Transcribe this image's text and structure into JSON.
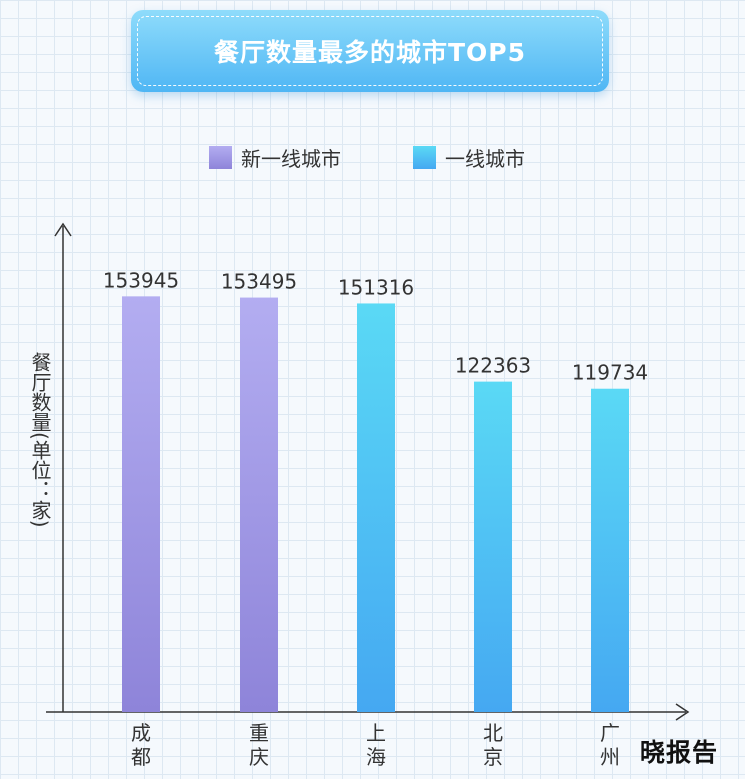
{
  "chart_data": {
    "type": "bar",
    "title": "餐厅数量最多的城市TOP5",
    "ylabel": "餐厅数量(单位：家)",
    "xlabel": "",
    "categories": [
      "成都",
      "重庆",
      "上海",
      "北京",
      "广州"
    ],
    "values": [
      153945,
      153495,
      151316,
      122363,
      119734
    ],
    "category_group": [
      "新一线城市",
      "新一线城市",
      "一线城市",
      "一线城市",
      "一线城市"
    ],
    "legend": [
      {
        "name": "新一线城市",
        "color_top": "#b3adf1",
        "color_bottom": "#8e84d9"
      },
      {
        "name": "一线城市",
        "color_top": "#5ad9f5",
        "color_bottom": "#45a8f2"
      }
    ],
    "legend_position": "top",
    "ylim": [
      0,
      180000
    ],
    "grid": false
  },
  "watermark": "晓报告"
}
